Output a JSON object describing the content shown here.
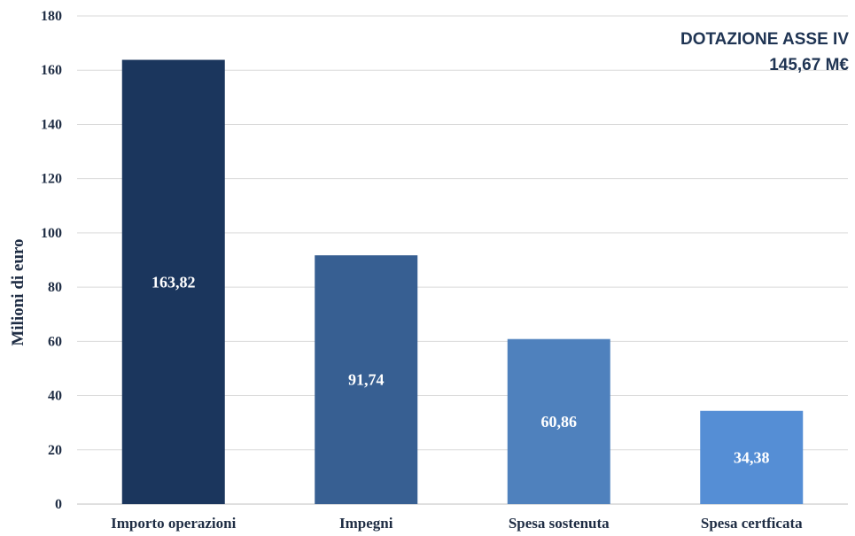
{
  "chart_data": {
    "type": "bar",
    "categories": [
      "Importo operazioni",
      "Impegni",
      "Spesa sostenuta",
      "Spesa certficata"
    ],
    "values": [
      163.82,
      91.74,
      60.86,
      34.38
    ],
    "value_labels": [
      "163,82",
      "91,74",
      "60,86",
      "34,38"
    ],
    "colors": [
      "#1b365d",
      "#375f92",
      "#4f81bd",
      "#558ed5"
    ],
    "title": "",
    "xlabel": "",
    "ylabel": "Milioni di euro",
    "ylim": [
      0,
      180
    ],
    "yticks": [
      0,
      20,
      40,
      60,
      80,
      100,
      120,
      140,
      160,
      180
    ],
    "grid": true,
    "legend": "none",
    "annotation": {
      "line1": "DOTAZIONE ASSE IV",
      "line2": "145,67 M€"
    }
  }
}
